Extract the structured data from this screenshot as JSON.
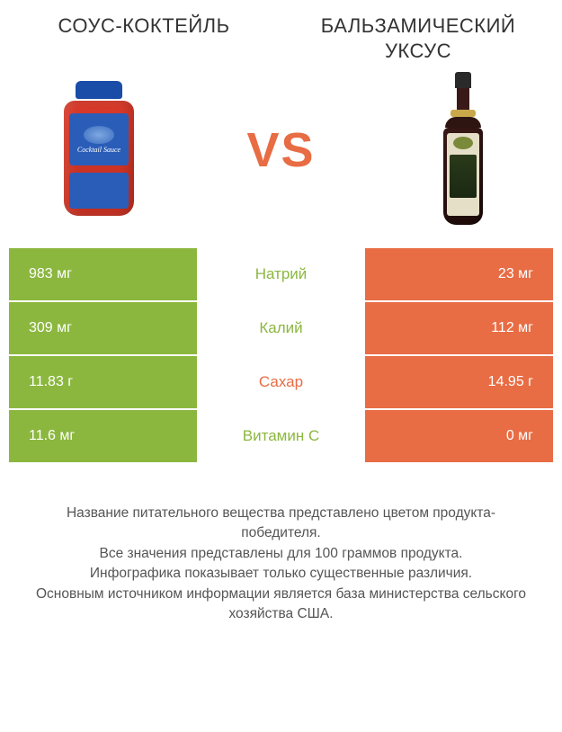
{
  "colors": {
    "green": "#8bb73f",
    "orange": "#e86c44",
    "vs": "#e86c44",
    "text": "#333333",
    "footer": "#555555",
    "white": "#ffffff"
  },
  "header": {
    "left_title": "СОУС-КОКТЕЙЛЬ",
    "right_title": "БАЛЬЗАМИЧЕСКИЙ УКСУС",
    "vs_label": "VS"
  },
  "jar_label_text": "Cocktail Sauce",
  "table": {
    "rows": [
      {
        "nutrient": "Натрий",
        "left": "983 мг",
        "right": "23 мг",
        "winner": "left"
      },
      {
        "nutrient": "Калий",
        "left": "309 мг",
        "right": "112 мг",
        "winner": "left"
      },
      {
        "nutrient": "Сахар",
        "left": "11.83 г",
        "right": "14.95 г",
        "winner": "right"
      },
      {
        "nutrient": "Витамин C",
        "left": "11.6 мг",
        "right": "0 мг",
        "winner": "left"
      }
    ]
  },
  "footer": {
    "line1": "Название питательного вещества представлено цветом продукта-победителя.",
    "line2": "Все значения представлены для 100 граммов продукта.",
    "line3": "Инфографика показывает только существенные различия.",
    "line4": "Основным источником информации является база министерства сельского хозяйства США."
  }
}
